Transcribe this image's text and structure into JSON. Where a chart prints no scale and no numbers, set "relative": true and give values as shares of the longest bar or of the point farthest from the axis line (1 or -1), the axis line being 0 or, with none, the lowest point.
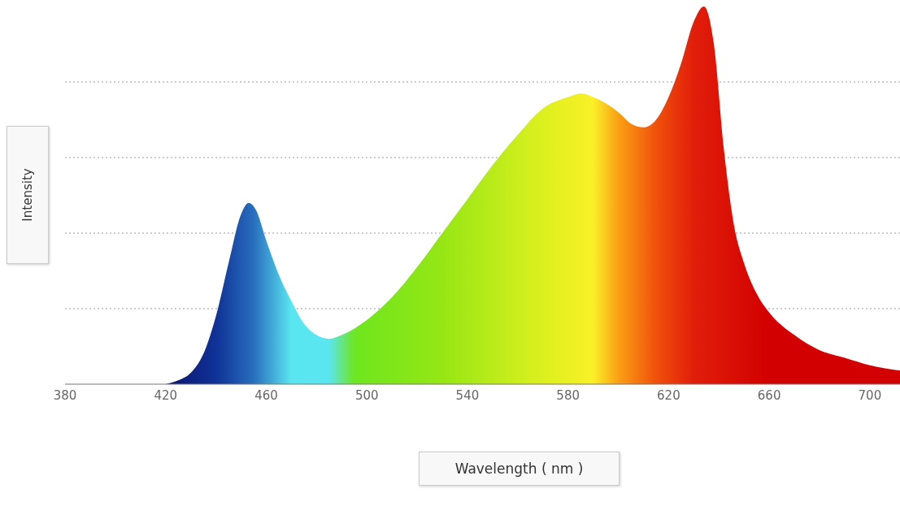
{
  "chart_data": {
    "type": "area",
    "relative": true,
    "xlabel": "Wavelength ( nm )",
    "ylabel": "Intensity",
    "grid": "y",
    "line_style": "dotted",
    "xlim": [
      380,
      712
    ],
    "xticks": [
      380,
      420,
      460,
      500,
      540,
      580,
      620,
      660,
      700
    ],
    "x": [
      420,
      425,
      430,
      435,
      440,
      445,
      450,
      453,
      456,
      460,
      465,
      470,
      475,
      480,
      485,
      490,
      500,
      510,
      520,
      530,
      540,
      550,
      560,
      570,
      580,
      585,
      590,
      600,
      605,
      610,
      615,
      620,
      625,
      630,
      634,
      638,
      642,
      646,
      650,
      655,
      660,
      670,
      680,
      690,
      700,
      712
    ],
    "values": [
      0,
      0.01,
      0.03,
      0.08,
      0.18,
      0.32,
      0.45,
      0.48,
      0.46,
      0.38,
      0.29,
      0.22,
      0.16,
      0.13,
      0.12,
      0.13,
      0.17,
      0.23,
      0.31,
      0.4,
      0.49,
      0.58,
      0.66,
      0.73,
      0.76,
      0.77,
      0.76,
      0.72,
      0.69,
      0.68,
      0.7,
      0.76,
      0.85,
      0.96,
      1,
      0.9,
      0.62,
      0.42,
      0.32,
      0.24,
      0.19,
      0.13,
      0.09,
      0.07,
      0.05,
      0.036
    ]
  }
}
